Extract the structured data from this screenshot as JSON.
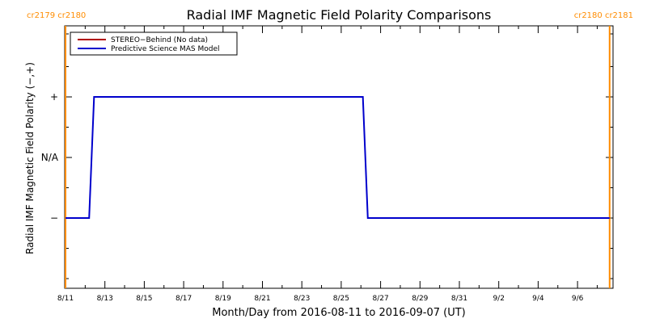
{
  "chart_data": {
    "type": "line",
    "title": "Radial IMF Magnetic Field Polarity Comparisons",
    "xlabel": "Month/Day from 2016-08-11 to 2016-09-07 (UT)",
    "ylabel": "Radial IMF Magnetic Field Polarity (−,+)",
    "x_ticks": [
      "8/11",
      "8/13",
      "8/15",
      "8/17",
      "8/19",
      "8/21",
      "8/23",
      "8/25",
      "8/27",
      "8/29",
      "8/31",
      "9/2",
      "9/4",
      "9/6"
    ],
    "y_ticks": [
      "+",
      "N/A",
      "−"
    ],
    "xlim_days": [
      0,
      27.8
    ],
    "ylim": [
      -1.5,
      1.5
    ],
    "carrington_markers": [
      {
        "label": "cr2179 cr2180",
        "day": 0.0,
        "color": "#FF8C00",
        "side": "left"
      },
      {
        "label": "cr2180 cr2181",
        "day": 27.63,
        "color": "#FF8C00",
        "side": "right"
      }
    ],
    "series": [
      {
        "name": "STEREO−Behind (No data)",
        "color": "#B00000",
        "x": [],
        "y": []
      },
      {
        "name": "Predictive Science MAS Model",
        "color": "#0000CC",
        "x": [
          0.0,
          1.2,
          1.45,
          15.1,
          15.35,
          27.63
        ],
        "y": [
          -1,
          -1,
          1,
          1,
          -1,
          -1
        ]
      }
    ]
  }
}
